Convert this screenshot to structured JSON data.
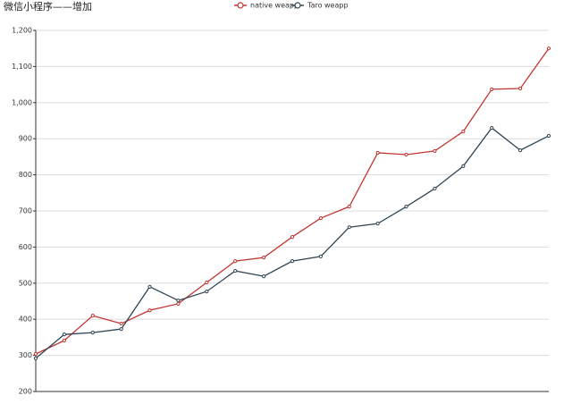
{
  "chart_data": {
    "type": "line",
    "title": "微信小程序——增加",
    "categories": [
      null,
      null,
      null,
      null,
      null,
      null,
      null,
      null,
      null,
      null,
      null,
      null,
      null,
      null,
      null,
      null,
      null,
      null,
      null
    ],
    "series": [
      {
        "name": "native weapp",
        "color": "#c23531",
        "values": [
          304,
          341,
          410,
          388,
          425,
          443,
          502,
          561,
          571,
          628,
          680,
          712,
          861,
          856,
          866,
          920,
          1037,
          1039,
          1150
        ]
      },
      {
        "name": "Taro weapp",
        "color": "#2f4554",
        "values": [
          292,
          358,
          363,
          373,
          490,
          452,
          477,
          534,
          519,
          561,
          574,
          655,
          665,
          712,
          762,
          824,
          930,
          868,
          908
        ]
      }
    ],
    "ylim": [
      200,
      1200
    ],
    "yticks": [
      200,
      300,
      400,
      500,
      600,
      700,
      800,
      900,
      {
        "value": 1000,
        "label": "1,000"
      },
      {
        "value": 1100,
        "label": "1,100"
      },
      {
        "value": 1200,
        "label": "1,200"
      }
    ],
    "grid": true,
    "legend": "top"
  }
}
